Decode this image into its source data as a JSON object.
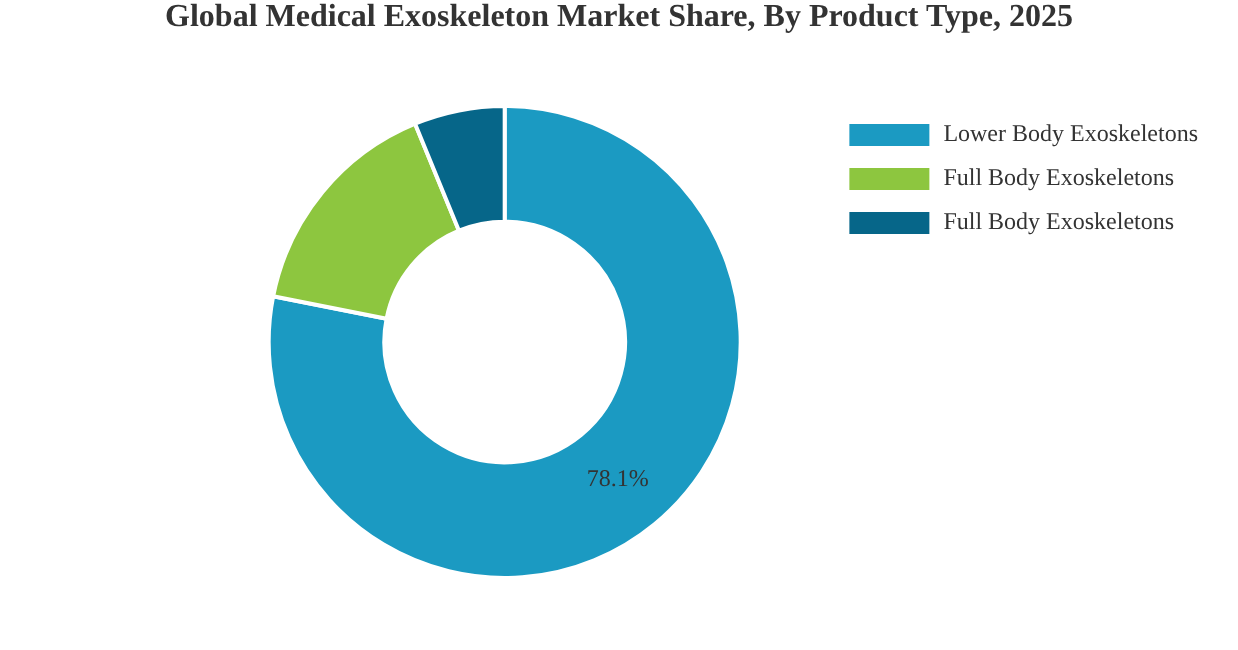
{
  "chart_data": {
    "type": "donut",
    "title": "Global Medical Exoskeleton Market Share, By Product Type, 2025",
    "categories": [
      "Lower Body Exoskeletons",
      "Full Body Exoskeletons",
      "Full Body Exoskeletons"
    ],
    "values": [
      78.1,
      15.7,
      6.2
    ],
    "colors": [
      "#1b9ac2",
      "#8dc63f",
      "#066689"
    ],
    "value_labels": [
      "78.1%",
      null,
      null
    ],
    "legend": "top right"
  }
}
